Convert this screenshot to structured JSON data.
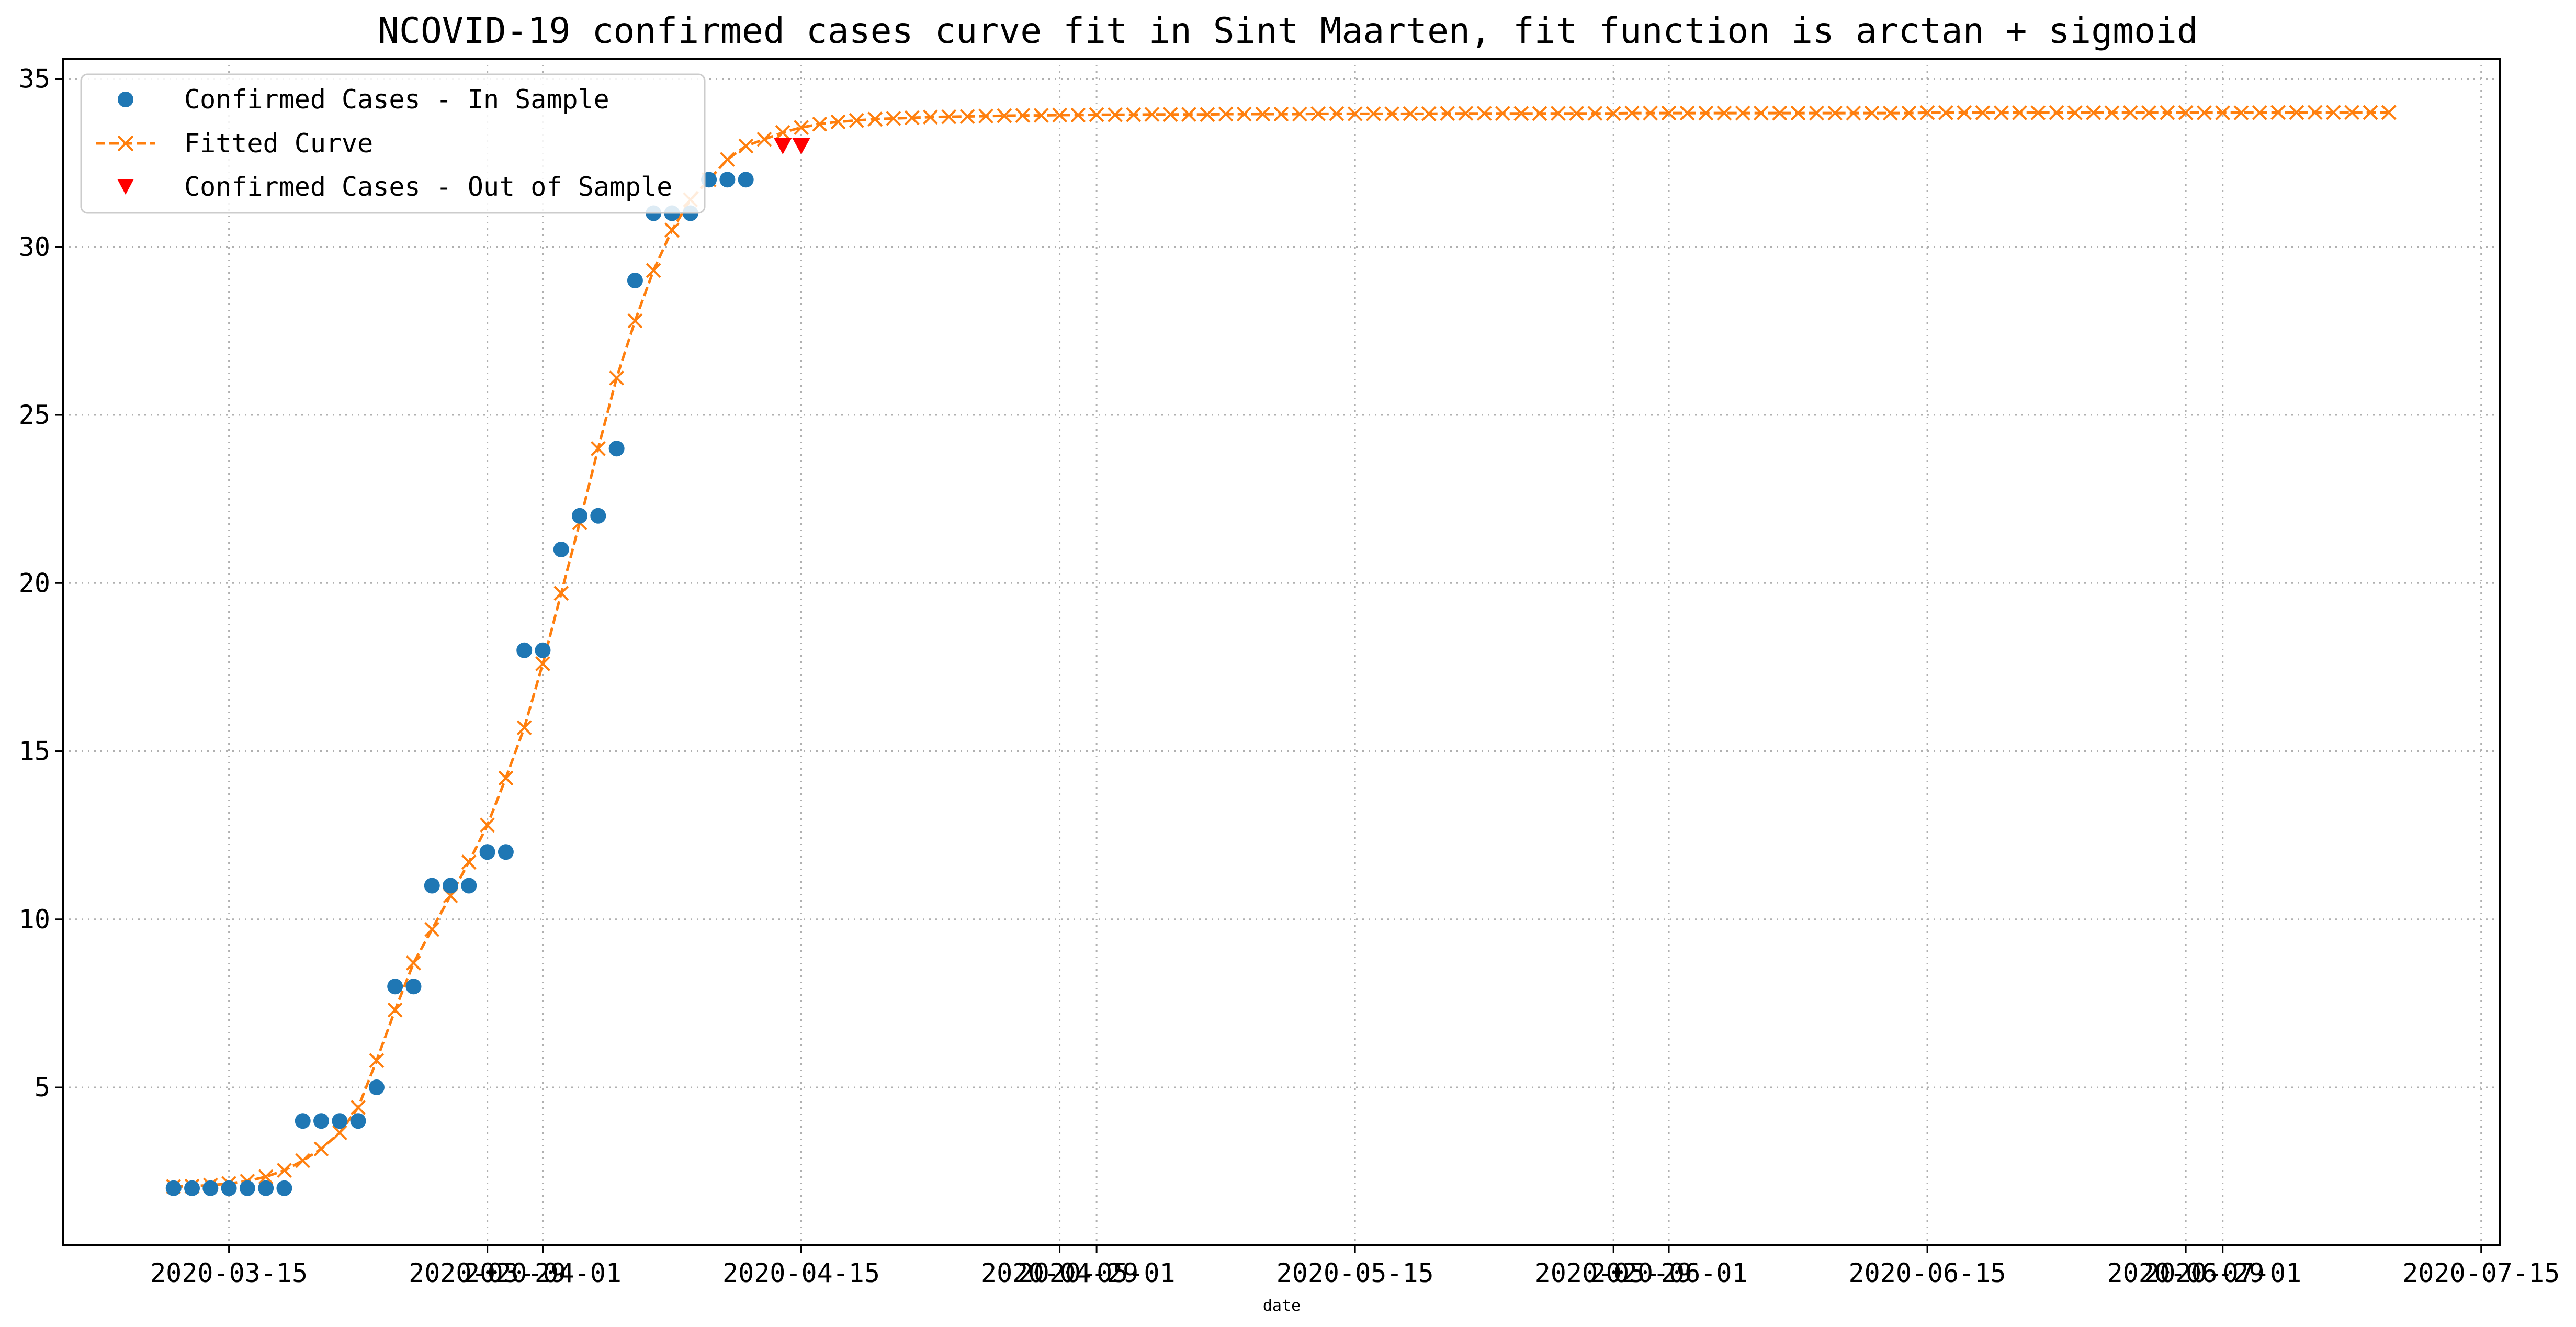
{
  "chart_data": {
    "type": "line",
    "title": "NCOVID-19 confirmed cases curve fit in Sint Maarten, fit function is arctan + sigmoid",
    "xlabel": "date",
    "ylabel": "",
    "x_tick_labels": [
      "2020-03-15",
      "2020-03-29",
      "2020-04-01",
      "2020-04-15",
      "2020-04-29",
      "2020-05-01",
      "2020-05-15",
      "2020-05-29",
      "2020-06-01",
      "2020-06-15",
      "2020-06-29",
      "2020-07-01",
      "2020-07-15"
    ],
    "y_ticks": [
      5,
      10,
      15,
      20,
      25,
      30,
      35
    ],
    "xlim": [
      "2020-03-06",
      "2020-07-16"
    ],
    "ylim": [
      0.3,
      35.6
    ],
    "grid": true,
    "legend_position": "top-left",
    "colors": {
      "in_sample": "#1f77b4",
      "fitted": "#ff7f0e",
      "out_of_sample": "#ff0000",
      "grid": "#b0b0b0"
    },
    "series": [
      {
        "name": "Confirmed Cases - In Sample",
        "marker": "circle",
        "x": [
          "2020-03-12",
          "2020-03-13",
          "2020-03-14",
          "2020-03-15",
          "2020-03-16",
          "2020-03-17",
          "2020-03-18",
          "2020-03-19",
          "2020-03-20",
          "2020-03-21",
          "2020-03-22",
          "2020-03-23",
          "2020-03-24",
          "2020-03-25",
          "2020-03-26",
          "2020-03-27",
          "2020-03-28",
          "2020-03-29",
          "2020-03-30",
          "2020-03-31",
          "2020-04-01",
          "2020-04-02",
          "2020-04-03",
          "2020-04-04",
          "2020-04-05",
          "2020-04-06",
          "2020-04-07",
          "2020-04-08",
          "2020-04-09",
          "2020-04-10",
          "2020-04-11",
          "2020-04-12"
        ],
        "values": [
          2,
          2,
          2,
          2,
          2,
          2,
          2,
          4,
          4,
          4,
          4,
          5,
          8,
          8,
          11,
          11,
          11,
          12,
          12,
          18,
          18,
          21,
          22,
          22,
          24,
          29,
          31,
          31,
          31,
          32,
          32,
          32
        ]
      },
      {
        "name": "Fitted Curve",
        "marker": "x",
        "linestyle": "dashed",
        "x_start": "2020-03-12",
        "x_step_days": 1,
        "values": [
          2.05,
          2.06,
          2.09,
          2.14,
          2.21,
          2.34,
          2.53,
          2.82,
          3.17,
          3.65,
          4.4,
          5.8,
          7.3,
          8.7,
          9.7,
          10.7,
          11.7,
          12.8,
          14.2,
          15.7,
          17.6,
          19.7,
          21.8,
          24.0,
          26.1,
          27.8,
          29.3,
          30.5,
          31.4,
          32.0,
          32.6,
          33.0,
          33.2,
          33.4,
          33.55,
          33.65,
          33.72,
          33.76,
          33.8,
          33.82,
          33.84,
          33.86,
          33.87,
          33.88,
          33.89,
          33.9,
          33.91,
          33.91,
          33.92,
          33.92,
          33.93,
          33.93,
          33.93,
          33.94,
          33.94,
          33.94,
          33.94,
          33.95,
          33.95,
          33.95,
          33.95,
          33.95,
          33.96,
          33.96,
          33.96,
          33.96,
          33.96,
          33.96,
          33.96,
          33.97,
          33.97,
          33.97,
          33.97,
          33.97,
          33.97,
          33.97,
          33.97,
          33.97,
          33.97,
          33.98,
          33.98,
          33.98,
          33.98,
          33.98,
          33.98,
          33.98,
          33.98,
          33.98,
          33.98,
          33.98,
          33.98,
          33.98,
          33.98,
          33.98,
          33.98,
          33.99,
          33.99,
          33.99,
          33.99,
          33.99,
          33.99,
          33.99,
          33.99,
          33.99,
          33.99,
          33.99,
          33.99,
          33.99,
          33.99,
          33.99,
          33.99,
          33.99,
          33.99,
          33.99,
          34.0,
          34.0,
          34.0,
          34.0,
          34.0,
          34.0,
          34.0
        ]
      },
      {
        "name": "Confirmed Cases - Out of Sample",
        "marker": "triangle_down",
        "x": [
          "2020-04-14",
          "2020-04-15"
        ],
        "values": [
          33,
          33
        ]
      }
    ]
  }
}
